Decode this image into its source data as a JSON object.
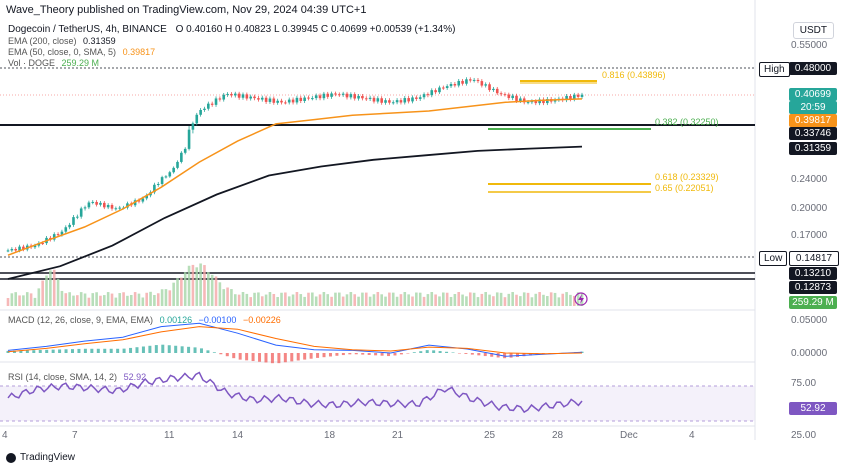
{
  "header": {
    "published": "Wave_Theory published on TradingView.com, Nov 29, 2024 04:39 UTC+1",
    "symbol_line": "Dogecoin / TetherUS, 4h, BINANCE",
    "ohlc": "O 0.40160  H 0.40823  L 0.39945  C 0.40699  +0.00539 (+1.34%)"
  },
  "indicators": {
    "ema200": {
      "label": "EMA (200, close)",
      "value": "0.31359",
      "color": "#131722"
    },
    "ema50": {
      "label": "EMA (50, close, 0, SMA, 5)",
      "value": "0.39817",
      "color": "#f7931a"
    },
    "vol": {
      "label": "Vol · DOGE",
      "value": "259.29 M",
      "color": "#4caf50"
    },
    "macd": {
      "label": "MACD (12, 26, close, 9, EMA, EMA)",
      "v1": "0.00126",
      "v2": "−0.00100",
      "v3": "−0.00226"
    },
    "rsi": {
      "label": "RSI (14, close, SMA, 14, 2)",
      "value": "52.92"
    }
  },
  "currency": "USDT",
  "colors": {
    "up": "#26a69a",
    "down": "#ef5350",
    "ema50": "#f7931a",
    "ema200": "#131722",
    "rsi": "#7e57c2",
    "macd": "#2962ff",
    "signal": "#ff6d00",
    "volume": "#4caf50"
  },
  "price_axis": [
    "0.55000",
    "0.24000",
    "0.20000",
    "0.17000",
    "0.05000",
    "0.00000",
    "75.00",
    "25.00"
  ],
  "price_labels": {
    "high_tag": "High",
    "high": "0.48000",
    "current": "0.40699",
    "countdown": "20:59",
    "ema50": "0.39817",
    "support1": "0.33746",
    "ema200": "0.31359",
    "low_tag": "Low",
    "low": "0.14817",
    "support2": "0.13210",
    "support3": "0.12873",
    "volume": "259.29 M",
    "rsi": "52.92"
  },
  "fib_levels": [
    {
      "label": "0.816 (0.43896)",
      "color": "#f0b90b"
    },
    {
      "label": "0.382 (0.32250)",
      "color": "#4caf50"
    },
    {
      "label": "0.618 (0.23329)",
      "color": "#f0b90b"
    },
    {
      "label": "0.65 (0.22051)",
      "color": "#f0b90b"
    }
  ],
  "x_axis": [
    "4",
    "7",
    "11",
    "14",
    "18",
    "21",
    "25",
    "28",
    "Dec",
    "4"
  ],
  "footer": "TradingView",
  "chart_data": {
    "type": "candlestick",
    "title": "Dogecoin / TetherUS, 4h, BINANCE",
    "x_ticks": [
      "4",
      "7",
      "11",
      "14",
      "18",
      "21",
      "25",
      "28",
      "Dec",
      "4"
    ],
    "price_close_path": [
      0.155,
      0.16,
      0.175,
      0.21,
      0.2,
      0.215,
      0.26,
      0.37,
      0.41,
      0.4,
      0.39,
      0.4,
      0.41,
      0.4,
      0.39,
      0.4,
      0.43,
      0.45,
      0.41,
      0.39,
      0.395,
      0.407
    ],
    "ema50_path": [
      0.15,
      0.165,
      0.18,
      0.2,
      0.23,
      0.28,
      0.32,
      0.34,
      0.35,
      0.36,
      0.365,
      0.37,
      0.38,
      0.39,
      0.395,
      0.398
    ],
    "ema200_path": [
      0.125,
      0.14,
      0.16,
      0.19,
      0.22,
      0.25,
      0.27,
      0.285,
      0.295,
      0.305,
      0.31,
      0.314
    ],
    "horizontal_levels": {
      "high": 0.48,
      "support": 0.33746,
      "low": 0.14817,
      "s2": 0.1321,
      "s3": 0.12873
    },
    "rsi_path": [
      58,
      70,
      75,
      72,
      68,
      80,
      86,
      90,
      65,
      55,
      58,
      50,
      48,
      52,
      50,
      49,
      72,
      56,
      45,
      42,
      48,
      52.92
    ],
    "macd_path": [
      0.004,
      0.01,
      0.018,
      0.024,
      0.04,
      0.045,
      0.03,
      0.012,
      0.005,
      0.004,
      0.0,
      0.012,
      0.006,
      -0.005,
      -0.002,
      0.00126
    ],
    "signal_path": [
      0.002,
      0.007,
      0.014,
      0.02,
      0.032,
      0.04,
      0.036,
      0.022,
      0.01,
      0.005,
      0.003,
      0.009,
      0.007,
      0.0,
      -0.001,
      0.0
    ]
  }
}
